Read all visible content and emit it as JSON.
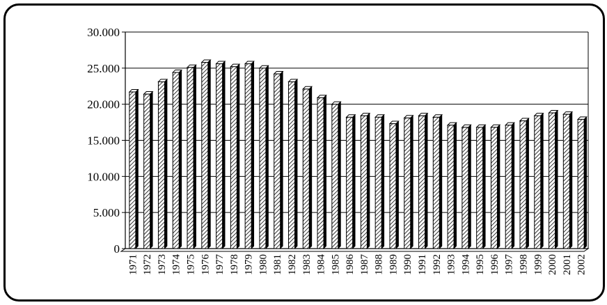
{
  "chart_data": {
    "type": "bar",
    "title": "",
    "xlabel": "",
    "ylabel": "",
    "ylim": [
      0,
      30000
    ],
    "yticks": [
      {
        "value": 0,
        "label": "0"
      },
      {
        "value": 5000,
        "label": "5.000"
      },
      {
        "value": 10000,
        "label": "10.000"
      },
      {
        "value": 15000,
        "label": "15.000"
      },
      {
        "value": 20000,
        "label": "20.000"
      },
      {
        "value": 25000,
        "label": "25.000"
      },
      {
        "value": 30000,
        "label": "30.000"
      }
    ],
    "grid": true,
    "legend": "none",
    "bar_style": "3d-hatched",
    "categories": [
      "1971",
      "1972",
      "1973",
      "1974",
      "1975",
      "1976",
      "1977",
      "1978",
      "1979",
      "1980",
      "1981",
      "1982",
      "1983",
      "1984",
      "1985",
      "1986",
      "1987",
      "1988",
      "1989",
      "1990",
      "1991",
      "1992",
      "1993",
      "1994",
      "1995",
      "1996",
      "1997",
      "1998",
      "1999",
      "2000",
      "2001",
      "2002"
    ],
    "values": [
      21700,
      21400,
      23100,
      24400,
      25100,
      25800,
      25600,
      25200,
      25600,
      25000,
      24200,
      23100,
      22100,
      20900,
      20000,
      18200,
      18400,
      18200,
      17300,
      18100,
      18400,
      18200,
      17100,
      16800,
      16800,
      16800,
      17100,
      17700,
      18400,
      18800,
      18600,
      17900
    ],
    "colors": {
      "bar_fill": "#ffffff",
      "bar_hatch": "#000000",
      "bar_side": "#000000",
      "grid": "#000000",
      "axis": "#000000"
    }
  }
}
